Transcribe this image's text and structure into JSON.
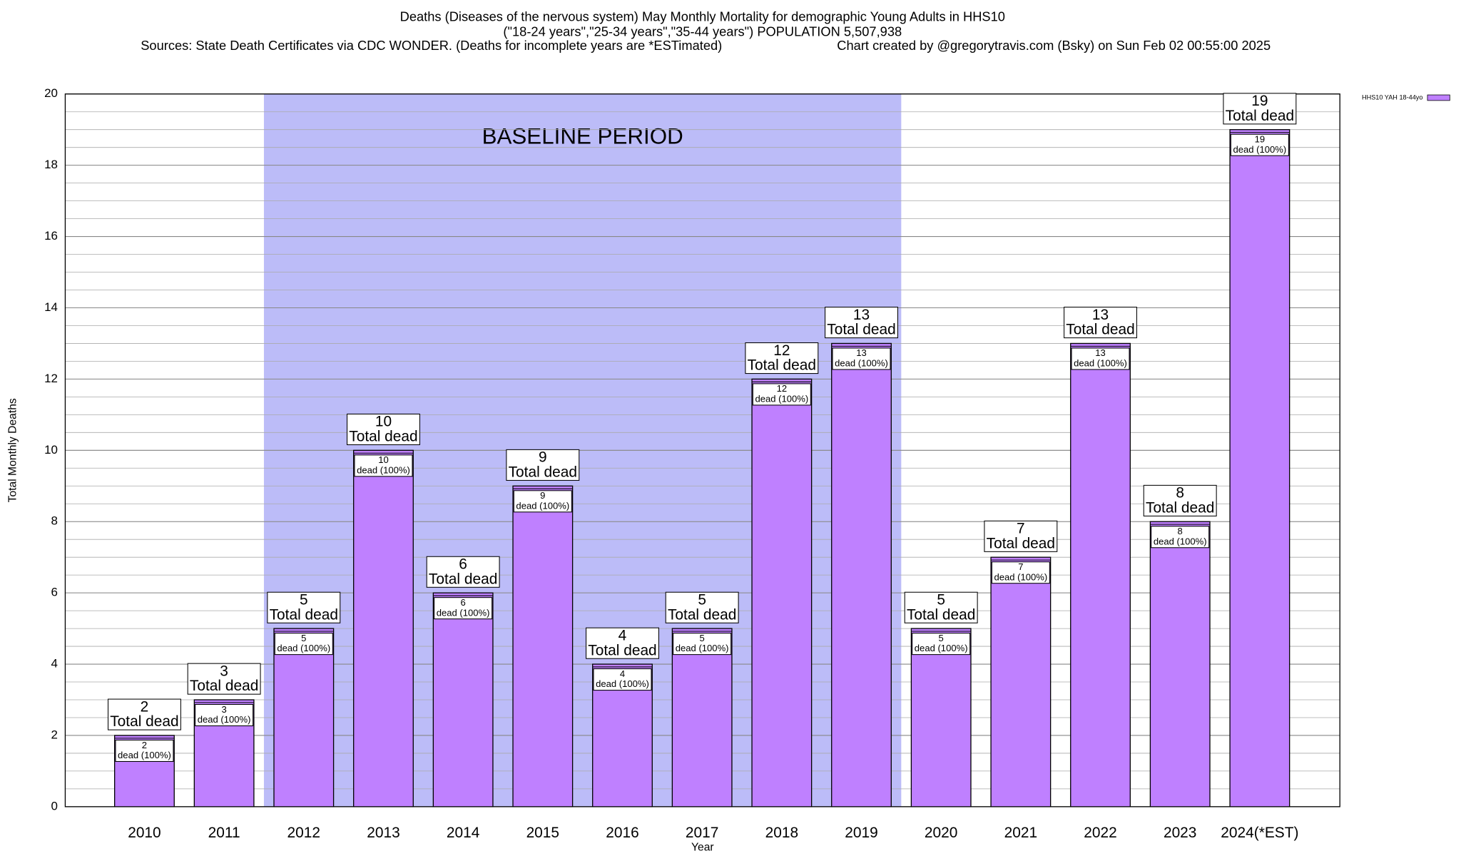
{
  "chart_data": {
    "type": "bar",
    "title": "Deaths (Diseases of the nervous system) May Monthly Mortality for demographic Young Adults in HHS10",
    "subtitle": "(\"18-24 years\",\"25-34 years\",\"35-44 years\") POPULATION 5,507,938",
    "sources": "Sources: State Death Certificates via CDC WONDER. (Deaths for incomplete years are *ESTimated)",
    "credit": "Chart created by @gregorytravis.com (Bsky) on Sun Feb 02 00:55:00 2025",
    "x_label": "Year",
    "y_label": "Total Monthly Deaths",
    "categories": [
      "2010",
      "2011",
      "2012",
      "2013",
      "2014",
      "2015",
      "2016",
      "2017",
      "2018",
      "2019",
      "2020",
      "2021",
      "2022",
      "2023",
      "2024(*EST)"
    ],
    "series": [
      {
        "name": "HHS10 YAH 18-44yo",
        "color": "#bf80ff",
        "values": [
          2,
          3,
          5,
          10,
          6,
          9,
          4,
          5,
          12,
          13,
          5,
          7,
          13,
          8,
          19
        ]
      }
    ],
    "total_label": "Total dead",
    "inner_label": "dead (100%)",
    "baseline": {
      "label": "BASELINE PERIOD",
      "start": "2012",
      "end": "2019",
      "color": "#bcbcf8"
    },
    "ylim": [
      0,
      20
    ],
    "yticks": [
      0,
      2,
      4,
      6,
      8,
      10,
      12,
      14,
      16,
      18,
      20
    ],
    "minor_grid_step": 0.5,
    "grid": true,
    "legend": "top-right"
  }
}
